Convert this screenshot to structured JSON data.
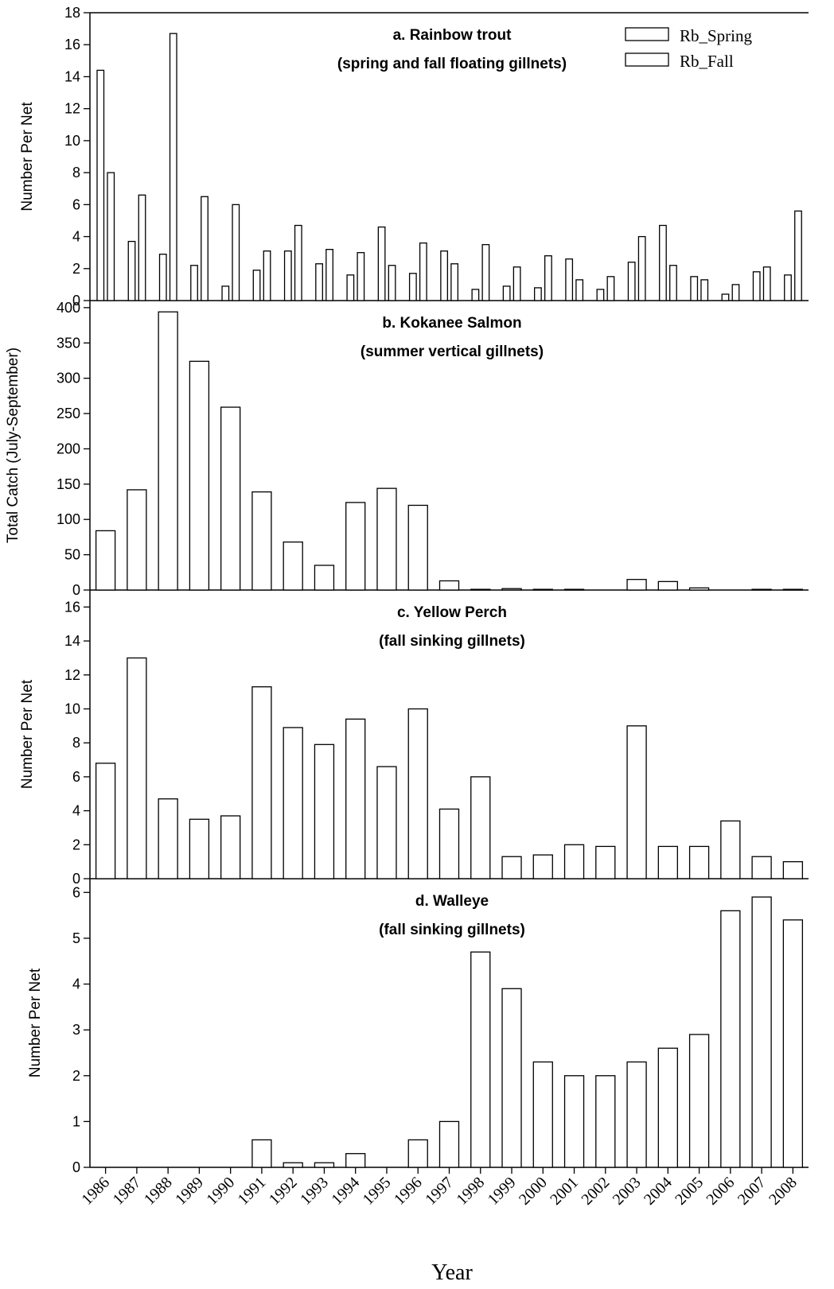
{
  "chart_data": {
    "type": "bar",
    "xlabel": "Year",
    "categories": [
      "1986",
      "1987",
      "1988",
      "1989",
      "1990",
      "1991",
      "1992",
      "1993",
      "1994",
      "1995",
      "1996",
      "1997",
      "1998",
      "1999",
      "2000",
      "2001",
      "2002",
      "2003",
      "2004",
      "2005",
      "2006",
      "2007",
      "2008"
    ],
    "panels": [
      {
        "title": "a.  Rainbow trout",
        "subtitle": "(spring and fall floating gillnets)",
        "ylabel": "Number Per Net",
        "ylim": [
          0,
          18
        ],
        "yticks": [
          0,
          2,
          4,
          6,
          8,
          10,
          12,
          14,
          16,
          18
        ],
        "legend": "top-right",
        "series": [
          {
            "name": "Rb_Spring",
            "values": [
              14.4,
              3.7,
              2.9,
              2.2,
              0.9,
              1.9,
              3.1,
              2.3,
              1.6,
              4.6,
              1.7,
              3.1,
              0.7,
              0.9,
              0.8,
              2.6,
              0.7,
              2.4,
              4.7,
              1.5,
              0.4,
              1.8,
              1.6
            ]
          },
          {
            "name": "Rb_Fall",
            "values": [
              8.0,
              6.6,
              16.7,
              6.5,
              6.0,
              3.1,
              4.7,
              3.2,
              3.0,
              2.2,
              3.6,
              2.3,
              3.5,
              2.1,
              2.8,
              1.3,
              1.5,
              4.0,
              2.2,
              1.3,
              1.0,
              2.1,
              5.6
            ]
          }
        ]
      },
      {
        "title": "b.  Kokanee Salmon",
        "subtitle": "(summer vertical gillnets)",
        "ylabel": "Total Catch (July-September)",
        "ylim": [
          0,
          410
        ],
        "yticks": [
          0,
          50,
          100,
          150,
          200,
          250,
          300,
          350,
          400
        ],
        "values": [
          84,
          142,
          394,
          324,
          259,
          139,
          68,
          35,
          124,
          144,
          120,
          13,
          1,
          2,
          1,
          1,
          0,
          15,
          12,
          3,
          0,
          1,
          1
        ]
      },
      {
        "title": "c.  Yellow Perch",
        "subtitle": "(fall sinking gillnets)",
        "ylabel": "Number Per Net",
        "ylim": [
          0,
          17
        ],
        "yticks": [
          0,
          2,
          4,
          6,
          8,
          10,
          12,
          14,
          16
        ],
        "values": [
          6.8,
          13.0,
          4.7,
          3.5,
          3.7,
          11.3,
          8.9,
          7.9,
          9.4,
          6.6,
          10.0,
          4.1,
          6.0,
          1.3,
          1.4,
          2.0,
          1.9,
          9.0,
          1.9,
          1.9,
          3.4,
          1.3,
          1.0
        ]
      },
      {
        "title": "d.  Walleye",
        "subtitle": "(fall sinking gillnets)",
        "ylabel": "Number Per Net",
        "ylim": [
          0,
          6.3
        ],
        "yticks": [
          0,
          1,
          2,
          3,
          4,
          5,
          6
        ],
        "values": [
          0,
          0,
          0,
          0,
          0,
          0.6,
          0.1,
          0.1,
          0.3,
          0,
          0.6,
          1.0,
          4.7,
          3.9,
          2.3,
          2.0,
          2.0,
          2.3,
          2.6,
          2.9,
          5.6,
          5.9,
          5.4
        ]
      }
    ]
  }
}
